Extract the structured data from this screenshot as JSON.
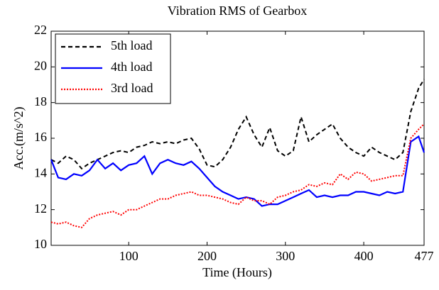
{
  "chart_data": {
    "type": "line",
    "title": "Vibration RMS of Gearbox",
    "x_label": "Time (Hours)",
    "y_label": "Acc.(m/s^2)",
    "x": [
      1,
      10,
      20,
      30,
      40,
      50,
      60,
      70,
      80,
      90,
      100,
      110,
      120,
      130,
      140,
      150,
      160,
      170,
      180,
      190,
      200,
      210,
      220,
      230,
      240,
      250,
      260,
      270,
      280,
      290,
      300,
      310,
      320,
      330,
      340,
      350,
      360,
      370,
      380,
      390,
      400,
      410,
      420,
      430,
      440,
      450,
      460,
      470,
      477
    ],
    "series": [
      {
        "name": "5th load",
        "color": "#000000",
        "style": "dashed",
        "values": [
          14.8,
          14.6,
          15.0,
          14.8,
          14.3,
          14.6,
          14.8,
          15.0,
          15.2,
          15.3,
          15.2,
          15.5,
          15.6,
          15.8,
          15.7,
          15.8,
          15.7,
          15.9,
          16.0,
          15.4,
          14.5,
          14.4,
          14.8,
          15.5,
          16.5,
          17.2,
          16.2,
          15.5,
          16.6,
          15.3,
          15.0,
          15.3,
          17.2,
          15.8,
          16.2,
          16.5,
          16.8,
          16.0,
          15.5,
          15.2,
          15.0,
          15.5,
          15.2,
          15.0,
          14.8,
          15.2,
          17.5,
          18.8,
          19.3
        ]
      },
      {
        "name": "4th load",
        "color": "#0000ff",
        "style": "solid",
        "values": [
          14.8,
          13.8,
          13.7,
          14.0,
          13.9,
          14.2,
          14.8,
          14.3,
          14.6,
          14.2,
          14.5,
          14.6,
          15.0,
          14.0,
          14.6,
          14.8,
          14.6,
          14.5,
          14.7,
          14.3,
          13.8,
          13.3,
          13.0,
          12.8,
          12.6,
          12.7,
          12.6,
          12.2,
          12.3,
          12.3,
          12.5,
          12.7,
          12.9,
          13.1,
          12.7,
          12.8,
          12.7,
          12.8,
          12.8,
          13.0,
          13.0,
          12.9,
          12.8,
          13.0,
          12.9,
          13.0,
          15.8,
          16.1,
          15.2
        ]
      },
      {
        "name": "3rd load",
        "color": "#ff0000",
        "style": "dotted",
        "values": [
          11.3,
          11.2,
          11.3,
          11.1,
          11.0,
          11.5,
          11.7,
          11.8,
          11.9,
          11.7,
          12.0,
          12.0,
          12.2,
          12.4,
          12.6,
          12.6,
          12.8,
          12.9,
          13.0,
          12.8,
          12.8,
          12.7,
          12.6,
          12.4,
          12.3,
          12.7,
          12.5,
          12.5,
          12.3,
          12.7,
          12.8,
          13.0,
          13.1,
          13.4,
          13.3,
          13.5,
          13.4,
          14.0,
          13.7,
          14.1,
          14.0,
          13.6,
          13.7,
          13.8,
          13.9,
          13.9,
          16.0,
          16.5,
          16.8
        ]
      }
    ],
    "xlim": [
      1,
      477
    ],
    "xticks": [
      100,
      200,
      300,
      400,
      477
    ],
    "ylim": [
      10,
      22
    ],
    "yticks": [
      10,
      12,
      14,
      16,
      18,
      20,
      22
    ],
    "grid": false,
    "legend": "upper-left"
  }
}
